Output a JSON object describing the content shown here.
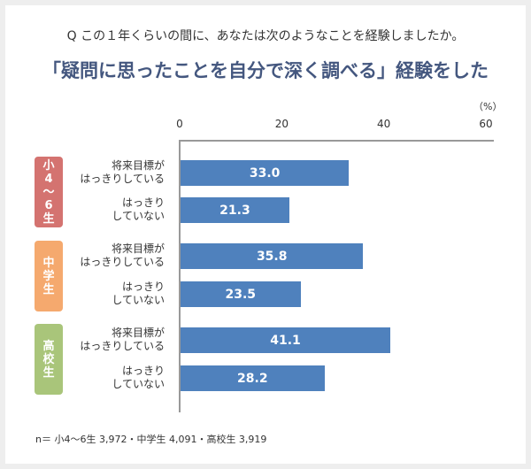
{
  "question": "Q この１年くらいの間に、あなたは次のようなことを経験しましたか。",
  "chart_data": {
    "type": "bar",
    "orientation": "horizontal",
    "title": "「疑問に思ったことを自分で深く調べる」経験をした",
    "unit": "（%）",
    "xlim": [
      0,
      60
    ],
    "ticks": [
      "0",
      "20",
      "40",
      "60"
    ],
    "groups": [
      {
        "name": "小4〜6生",
        "color": "#d47370",
        "glyphs": [
          "小",
          "4",
          "〜",
          "6",
          "生"
        ]
      },
      {
        "name": "中学生",
        "color": "#f5a96e",
        "glyphs": [
          "中",
          "学",
          "生"
        ]
      },
      {
        "name": "高校生",
        "color": "#a9c57a",
        "glyphs": [
          "高",
          "校",
          "生"
        ]
      }
    ],
    "categories": [
      [
        "将来目標が",
        "はっきりしている"
      ],
      [
        "はっきり",
        "していない"
      ]
    ],
    "values": [
      [
        33.0,
        21.3
      ],
      [
        35.8,
        23.5
      ],
      [
        41.1,
        28.2
      ]
    ],
    "value_labels": [
      [
        "33.0",
        "21.3"
      ],
      [
        "35.8",
        "23.5"
      ],
      [
        "41.1",
        "28.2"
      ]
    ],
    "bar_color": "#4f81bd",
    "grid": false
  },
  "note": "n＝ 小4〜6生 3,972・中学生 4,091・高校生 3,919"
}
